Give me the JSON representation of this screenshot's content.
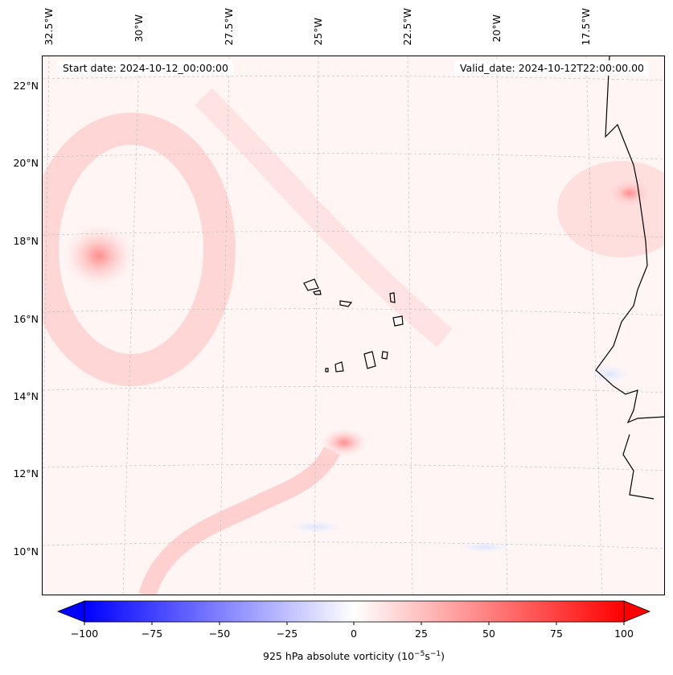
{
  "lon_labels": [
    "32.5°W",
    "30°W",
    "27.5°W",
    "25°W",
    "22.5°W",
    "20°W",
    "17.5°W"
  ],
  "lat_labels": [
    "22°N",
    "20°N",
    "18°N",
    "16°N",
    "14°N",
    "12°N",
    "10°N"
  ],
  "start_date": "Start date: 2024-10-12_00:00:00",
  "valid_date": "Valid_date: 2024-10-12T22:00:00.00",
  "colorbar": {
    "ticks": [
      "−100",
      "−75",
      "−50",
      "−25",
      "0",
      "25",
      "50",
      "75",
      "100"
    ],
    "title_main": "925 hPa absolute vorticity (10",
    "title_exp1": "−5",
    "title_mid": "s",
    "title_exp2": "−1",
    "title_end": ")",
    "range": [
      -100,
      100
    ],
    "colors": {
      "min": "#0000ff",
      "mid": "#ffffff",
      "max": "#ff0000"
    }
  }
}
